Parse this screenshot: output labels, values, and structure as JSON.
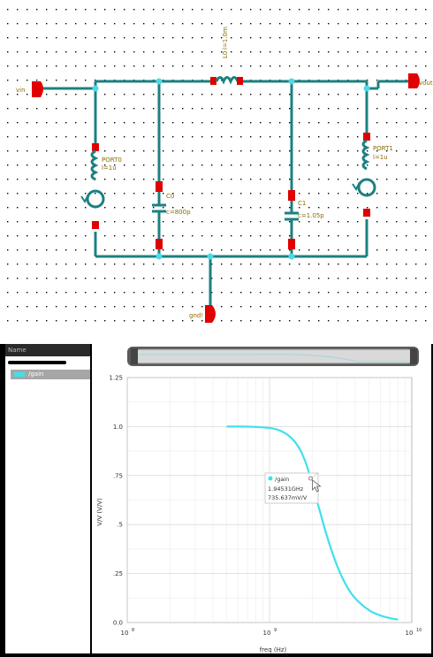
{
  "schematic": {
    "net_labels": {
      "vin": "vin",
      "vout": "vout",
      "gnd": "gnd!"
    },
    "components": {
      "inductor_top_name": "L0",
      "inductor_top_value": "l=1.0m",
      "inductor_left_name": "PORT0",
      "inductor_left_value": "l=1u",
      "cap1_name": "C0",
      "cap1_value": "c=800p",
      "cap2_name": "C1",
      "cap2_value": "c=1.05p",
      "inductor_right_name": "PORT1",
      "inductor_right_value": "l=1u"
    },
    "colors": {
      "wire": "#1c8080",
      "pin": "#e00000",
      "label": "#8a6a00",
      "grid_dot": "#000000"
    }
  },
  "browser": {
    "header": "Name",
    "signals": [
      {
        "name": "/gain",
        "color": "#3fe0ec"
      }
    ]
  },
  "plot": {
    "marker": {
      "trace": "/gain",
      "x_readout": "1.94531GHz",
      "y_readout": "735.637mV/V"
    }
  },
  "chart_data": {
    "type": "line",
    "xlabel": "freq (Hz)",
    "ylabel": "V/V (V/V)",
    "xscale": "log",
    "xlim": [
      100000000.0,
      10000000000.0
    ],
    "ylim": [
      0.0,
      1.25
    ],
    "x_ticks": [
      {
        "value": 100000000.0,
        "base": "10",
        "exp": "8"
      },
      {
        "value": 1000000000.0,
        "base": "10",
        "exp": "9"
      },
      {
        "value": 10000000000.0,
        "base": "10",
        "exp": "10"
      }
    ],
    "y_ticks": [
      {
        "value": 0.0,
        "label": "0.0"
      },
      {
        "value": 0.25,
        "label": ".25"
      },
      {
        "value": 0.5,
        "label": ".5"
      },
      {
        "value": 0.75,
        "label": ".75"
      },
      {
        "value": 1.0,
        "label": "1.0"
      },
      {
        "value": 1.25,
        "label": "1.25"
      }
    ],
    "grid": true,
    "series": [
      {
        "name": "/gain",
        "color": "#3fe0ec",
        "x": [
          500000000.0,
          700000000.0,
          1000000000.0,
          1200000000.0,
          1400000000.0,
          1600000000.0,
          1800000000.0,
          1945310000.0,
          2200000000.0,
          2500000000.0,
          3000000000.0,
          3500000000.0,
          4000000000.0,
          5000000000.0,
          6000000000.0,
          7000000000.0,
          8000000000.0
        ],
        "y": [
          1.0,
          1.0,
          0.995,
          0.98,
          0.95,
          0.9,
          0.82,
          0.7356,
          0.6,
          0.45,
          0.28,
          0.18,
          0.12,
          0.06,
          0.035,
          0.022,
          0.015
        ]
      }
    ]
  }
}
